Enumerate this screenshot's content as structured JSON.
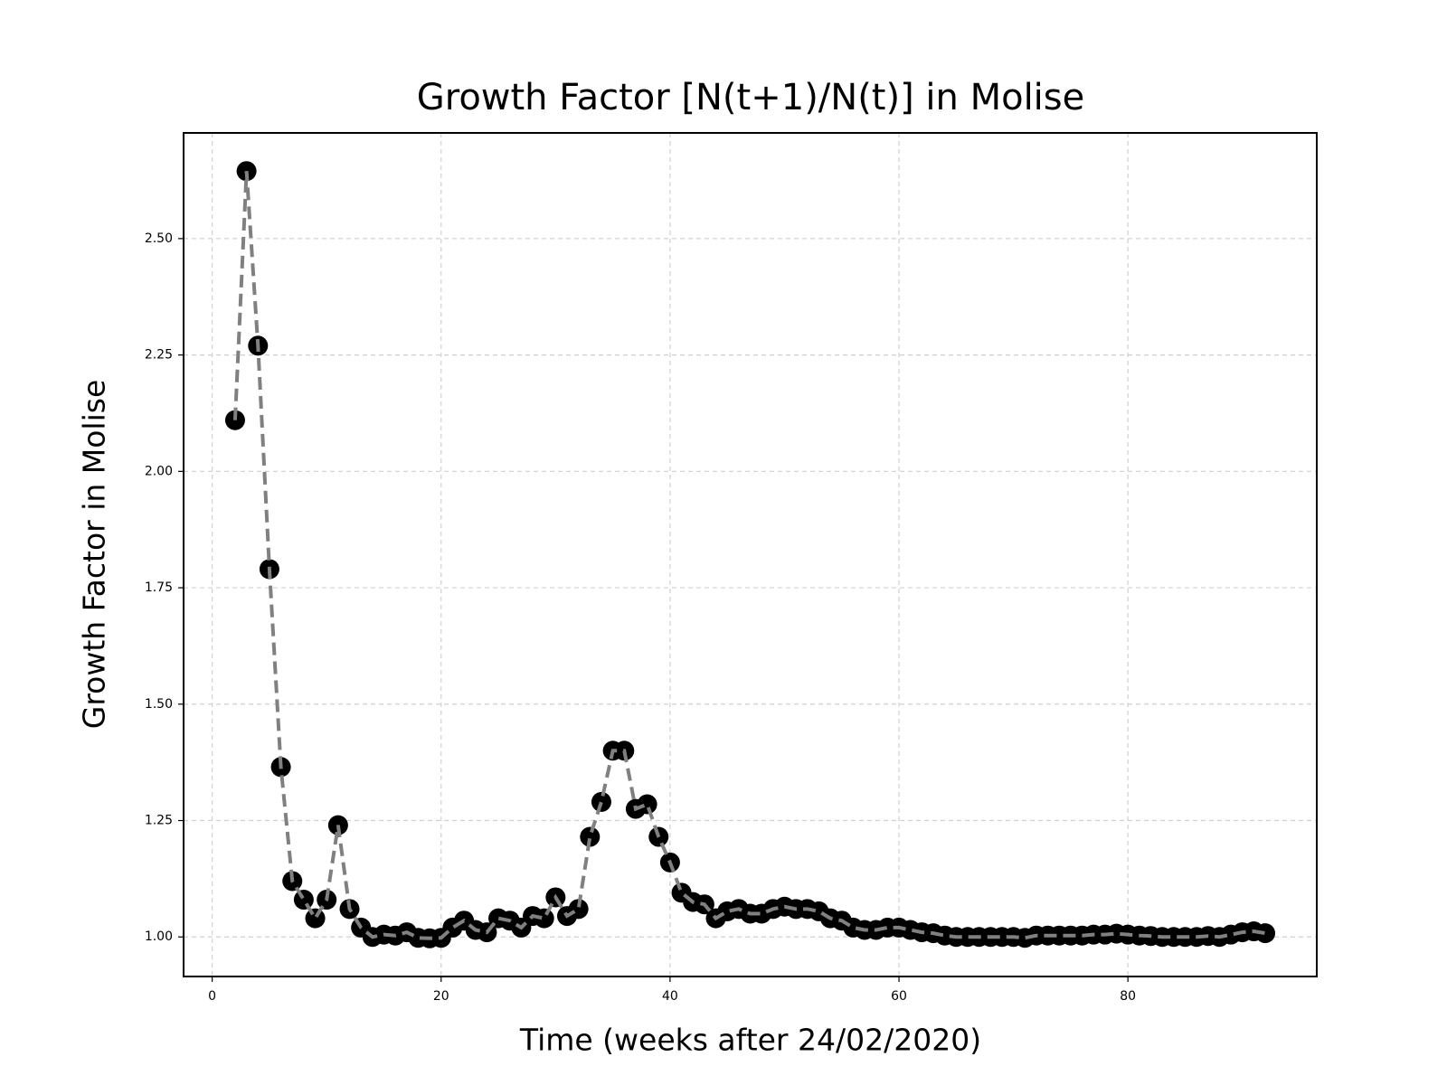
{
  "chart_data": {
    "type": "line",
    "title": "Growth Factor [N(t+1)/N(t)] in Molise",
    "x_label": "Time (weeks after 24/02/2020)",
    "y_label": "Growth Factor in Molise",
    "x": [
      2,
      3,
      4,
      5,
      6,
      7,
      8,
      9,
      10,
      11,
      12,
      13,
      14,
      15,
      16,
      17,
      18,
      19,
      20,
      21,
      22,
      23,
      24,
      25,
      26,
      27,
      28,
      29,
      30,
      31,
      32,
      33,
      34,
      35,
      36,
      37,
      38,
      39,
      40,
      41,
      42,
      43,
      44,
      45,
      46,
      47,
      48,
      49,
      50,
      51,
      52,
      53,
      54,
      55,
      56,
      57,
      58,
      59,
      60,
      61,
      62,
      63,
      64,
      65,
      66,
      67,
      68,
      69,
      70,
      71,
      72,
      73,
      74,
      75,
      76,
      77,
      78,
      79,
      80,
      81,
      82,
      83,
      84,
      85,
      86,
      87,
      88,
      89,
      90,
      91,
      92
    ],
    "series": [
      {
        "color": "#808080",
        "marker_color": "#000000",
        "values": [
          2.11,
          2.645,
          2.27,
          1.79,
          1.365,
          1.12,
          1.08,
          1.04,
          1.08,
          1.24,
          1.06,
          1.02,
          1.0,
          1.005,
          1.003,
          1.01,
          0.998,
          0.997,
          0.998,
          1.02,
          1.035,
          1.015,
          1.01,
          1.04,
          1.035,
          1.02,
          1.045,
          1.04,
          1.085,
          1.045,
          1.06,
          1.215,
          1.29,
          1.4,
          1.4,
          1.275,
          1.285,
          1.215,
          1.16,
          1.095,
          1.075,
          1.07,
          1.04,
          1.055,
          1.06,
          1.05,
          1.05,
          1.06,
          1.065,
          1.06,
          1.06,
          1.055,
          1.04,
          1.035,
          1.02,
          1.015,
          1.015,
          1.02,
          1.02,
          1.015,
          1.01,
          1.008,
          1.003,
          1.0,
          1.0,
          1.0,
          1.0,
          1.0,
          1.0,
          0.998,
          1.003,
          1.003,
          1.003,
          1.003,
          1.003,
          1.005,
          1.005,
          1.007,
          1.005,
          1.003,
          1.002,
          1.0,
          1.0,
          1.0,
          1.0,
          1.002,
          1.0,
          1.005,
          1.01,
          1.012,
          1.008
        ]
      }
    ],
    "xlim": [
      -2.5,
      96.5
    ],
    "xticks": [
      0,
      20,
      40,
      60,
      80
    ],
    "ylim": [
      0.915,
      2.727
    ],
    "yticks": [
      {
        "value": 1,
        "label": "1.00"
      },
      {
        "value": 1.25,
        "label": "1.25"
      },
      {
        "value": 1.5,
        "label": "1.50"
      },
      {
        "value": 1.75,
        "label": "1.75"
      },
      {
        "value": 2,
        "label": "2.00"
      },
      {
        "value": 2.25,
        "label": "2.25"
      },
      {
        "value": 2.5,
        "label": "2.50"
      }
    ],
    "grid": true
  }
}
